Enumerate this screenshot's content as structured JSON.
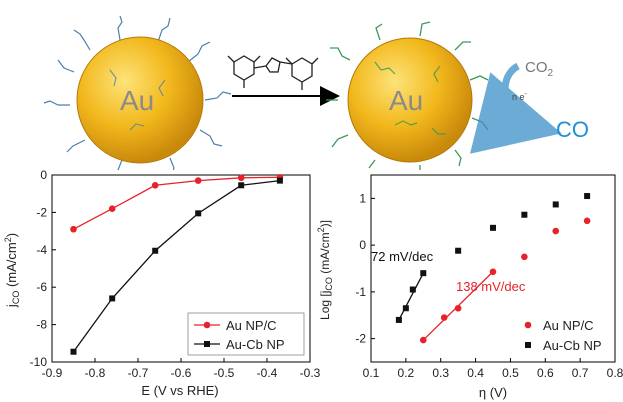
{
  "scheme": {
    "particle_label_left": "Au",
    "particle_label_right": "Au",
    "reactant": "CO",
    "reactant_sub": "2",
    "electron_label": "n e",
    "electron_sup": "-",
    "product": "CO",
    "colors": {
      "particle": "#f2b81c",
      "particle_edge": "#c98a0c",
      "label": "#8a8a8a",
      "product": "#1e8fd8",
      "arrow": "#3a8fc8"
    }
  },
  "chart_data": [
    {
      "type": "line",
      "xlabel": "E (V vs RHE)",
      "ylabel_main": "j",
      "ylabel_sub": "CO",
      "ylabel_rest": " (mA/cm",
      "ylabel_sup": "2",
      "ylabel_end": ")",
      "xlim": [
        -0.9,
        -0.3
      ],
      "ylim": [
        -10,
        0
      ],
      "xticks": [
        "-0.9",
        "-0.8",
        "-0.7",
        "-0.6",
        "-0.5",
        "-0.4",
        "-0.3"
      ],
      "xtick_values": [
        -0.9,
        -0.8,
        -0.7,
        -0.6,
        -0.5,
        -0.4,
        -0.3
      ],
      "yticks": [
        "0",
        "-2",
        "-4",
        "-6",
        "-8",
        "-10"
      ],
      "ytick_values": [
        0,
        -2,
        -4,
        -6,
        -8,
        -10
      ],
      "legend_placement": "bottom-right",
      "series": [
        {
          "name": "Au NP/C",
          "color": "#e8222a",
          "marker": "circle",
          "x": [
            -0.85,
            -0.76,
            -0.66,
            -0.56,
            -0.46,
            -0.37
          ],
          "y": [
            -2.9,
            -1.8,
            -0.55,
            -0.3,
            -0.15,
            -0.12
          ]
        },
        {
          "name": "Au-Cb NP",
          "color": "#111111",
          "marker": "square",
          "x": [
            -0.85,
            -0.76,
            -0.66,
            -0.56,
            -0.46,
            -0.37
          ],
          "y": [
            -9.45,
            -6.6,
            -4.05,
            -2.05,
            -0.55,
            -0.3
          ]
        }
      ]
    },
    {
      "type": "scatter",
      "xlabel": "η (V)",
      "ylabel_main": "Log [j",
      "ylabel_sub": "CO",
      "ylabel_rest": " (mA/cm",
      "ylabel_sup": "2",
      "ylabel_end": ")]",
      "xlim": [
        0.1,
        0.8
      ],
      "ylim": [
        -2.5,
        1.5
      ],
      "xticks": [
        "0.1",
        "0.2",
        "0.3",
        "0.4",
        "0.5",
        "0.6",
        "0.7",
        "0.8"
      ],
      "xtick_values": [
        0.1,
        0.2,
        0.3,
        0.4,
        0.5,
        0.6,
        0.7,
        0.8
      ],
      "yticks": [
        "1",
        "0",
        "-1",
        "-2"
      ],
      "ytick_values": [
        1,
        0,
        -1,
        -2
      ],
      "legend_placement": "bottom-right",
      "series": [
        {
          "name": "Au NP/C",
          "color": "#e8222a",
          "marker": "circle",
          "x": [
            0.25,
            0.31,
            0.35,
            0.45,
            0.54,
            0.63,
            0.72
          ],
          "y": [
            -2.03,
            -1.55,
            -1.35,
            -0.57,
            -0.25,
            0.3,
            0.52
          ]
        },
        {
          "name": "Au-Cb NP",
          "color": "#111111",
          "marker": "square",
          "x": [
            0.18,
            0.2,
            0.22,
            0.25,
            0.35,
            0.45,
            0.54,
            0.63,
            0.72
          ],
          "y": [
            -1.6,
            -1.35,
            -0.95,
            -0.6,
            -0.12,
            0.37,
            0.65,
            0.87,
            1.05
          ]
        }
      ],
      "fits": [
        {
          "label": "138 mV/dec",
          "color": "#e8222a",
          "x": [
            0.25,
            0.45
          ],
          "y": [
            -2.03,
            -0.57
          ]
        },
        {
          "label": "72 mV/dec",
          "color": "#111111",
          "x": [
            0.18,
            0.25
          ],
          "y": [
            -1.6,
            -0.6
          ]
        }
      ]
    }
  ]
}
